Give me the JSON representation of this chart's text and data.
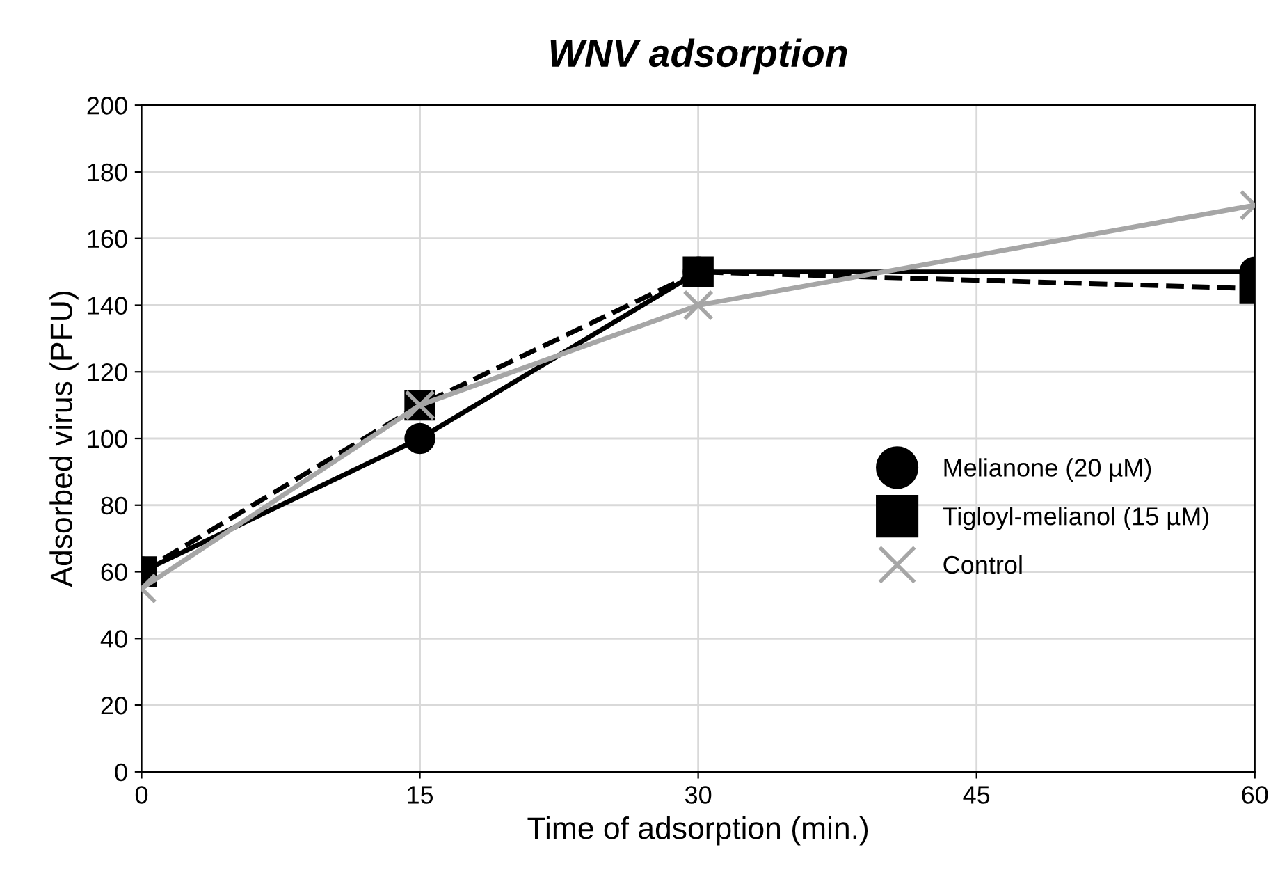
{
  "chart_data": {
    "type": "line",
    "title": "WNV adsorption",
    "xlabel": "Time of adsorption (min.)",
    "ylabel": "Adsorbed virus (PFU)",
    "x": [
      0,
      15,
      30,
      60
    ],
    "series": [
      {
        "name": "Melianone (20 µM)",
        "color": "#000000",
        "values": [
          60,
          100,
          150,
          150
        ],
        "marker": "circle",
        "line_style": "solid"
      },
      {
        "name": "Tigloyl-melianol (15 µM)",
        "color": "#000000",
        "values": [
          60,
          110,
          150,
          145
        ],
        "marker": "square",
        "line_style": "dashed"
      },
      {
        "name": "Control",
        "color": "#a6a6a6",
        "values": [
          55,
          110,
          140,
          170
        ],
        "marker": "cross",
        "line_style": "solid"
      }
    ],
    "xlim": [
      0,
      60
    ],
    "xticks": [
      0,
      15,
      30,
      45,
      60
    ],
    "ylim": [
      0,
      200
    ],
    "yticks": [
      0,
      20,
      40,
      60,
      80,
      100,
      120,
      140,
      160,
      180,
      200
    ],
    "grid": true,
    "legend": "right"
  }
}
